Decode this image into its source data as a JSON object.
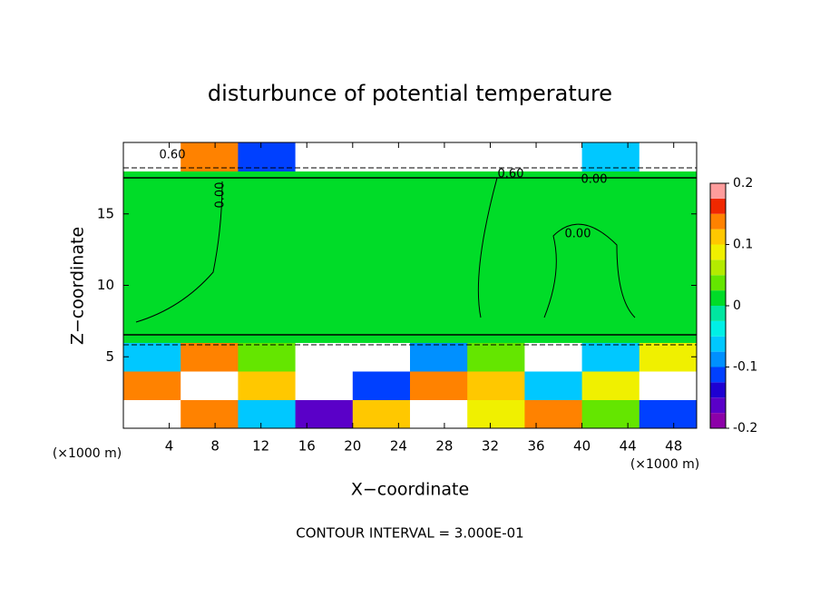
{
  "chart_data": {
    "type": "contour",
    "title": "disturbunce of potential temperature",
    "x_label": "X−coordinate",
    "y_label": "Z−coordinate",
    "x_unit": "(×1000 m)",
    "y_unit": "(×1000 m)",
    "footer": "CONTOUR INTERVAL = 3.000E-01",
    "xlim": [
      0,
      50
    ],
    "ylim": [
      0,
      20
    ],
    "xticks": [
      4,
      8,
      12,
      16,
      20,
      24,
      28,
      32,
      36,
      40,
      44,
      48
    ],
    "yticks": [
      5,
      10,
      15
    ],
    "x": [
      2.5,
      7.5,
      12.5,
      17.5,
      22.5,
      27.5,
      32.5,
      37.5,
      42.5,
      47.5
    ],
    "y": [
      1,
      3,
      5,
      7,
      9,
      11,
      13,
      15,
      17,
      19
    ],
    "z": [
      [
        0.3,
        0.15,
        -0.05,
        -0.15,
        0.12,
        0.3,
        0.1,
        0.15,
        0.05,
        -0.12
      ],
      [
        0.15,
        0.3,
        0.12,
        0.3,
        -0.1,
        0.15,
        0.12,
        -0.05,
        0.1,
        0.3
      ],
      [
        -0.05,
        0.15,
        0.05,
        0.3,
        0.3,
        -0.08,
        0.05,
        0.3,
        -0.05,
        0.1
      ],
      [
        0.01,
        0.01,
        0.005,
        0.01,
        0.01,
        0.005,
        0.01,
        0.01,
        0.005,
        0.01
      ],
      [
        0.02,
        0.02,
        0.02,
        0.02,
        0.02,
        0.02,
        0.02,
        0.02,
        0.02,
        0.02
      ],
      [
        0.02,
        0.015,
        0.02,
        0.02,
        0.02,
        0.02,
        0.015,
        0.02,
        0.02,
        0.02
      ],
      [
        0.02,
        0.02,
        0.02,
        0.02,
        0.02,
        0.02,
        0.015,
        0.02,
        0.015,
        0.02
      ],
      [
        0.02,
        0.02,
        0.02,
        0.02,
        0.02,
        0.02,
        0.02,
        0.02,
        0.02,
        0.02
      ],
      [
        0.02,
        0.02,
        0.02,
        0.02,
        0.02,
        0.02,
        0.02,
        0.02,
        0.02,
        0.02
      ],
      [
        0.3,
        0.15,
        -0.1,
        0.3,
        0.3,
        0.3,
        0.3,
        0.3,
        -0.05,
        0.3
      ]
    ],
    "colorbar": {
      "levels": [
        -0.2,
        -0.175,
        -0.15,
        -0.125,
        -0.1,
        -0.075,
        -0.05,
        -0.025,
        0,
        0.025,
        0.05,
        0.075,
        0.1,
        0.125,
        0.15,
        0.175,
        0.2
      ],
      "colors": [
        "#8c00a8",
        "#5a00c8",
        "#1e00d2",
        "#0040ff",
        "#0090ff",
        "#00c8ff",
        "#00f0e6",
        "#00e6a0",
        "#00dc28",
        "#64e600",
        "#b4eb00",
        "#f0f000",
        "#ffc800",
        "#ff8200",
        "#f02800",
        "#ff9c9c"
      ],
      "ticks": [
        -0.2,
        -0.1,
        0,
        0.1,
        0.2
      ]
    },
    "out_of_range_color": "#ffffff",
    "contour_labels": [
      "0.60",
      "0.00",
      "0.60",
      "0.00",
      "0.00"
    ]
  }
}
